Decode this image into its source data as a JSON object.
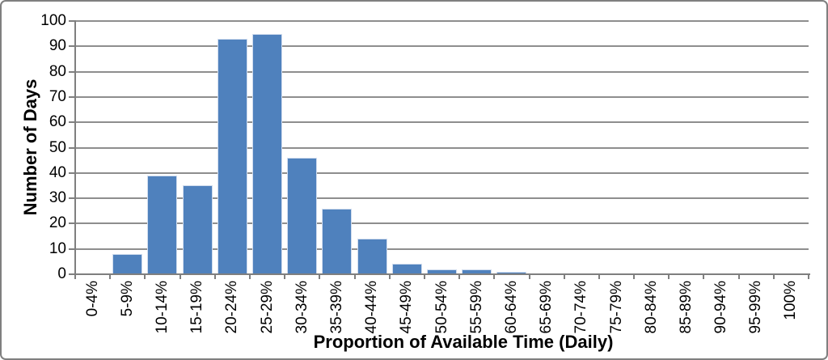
{
  "chart_data": {
    "type": "bar",
    "title": "",
    "categories": [
      "0-4%",
      "5-9%",
      "10-14%",
      "15-19%",
      "20-24%",
      "25-29%",
      "30-34%",
      "35-39%",
      "40-44%",
      "45-49%",
      "50-54%",
      "55-59%",
      "60-64%",
      "65-69%",
      "70-74%",
      "75-79%",
      "80-84%",
      "85-89%",
      "90-94%",
      "95-99%",
      "100%"
    ],
    "values": [
      0,
      8,
      39,
      35,
      93,
      95,
      46,
      26,
      14,
      4,
      2,
      2,
      1,
      0,
      0,
      0,
      0,
      0,
      0,
      0,
      0
    ],
    "xlabel": "Proportion of Available Time (Daily)",
    "ylabel": "Number of Days",
    "ylim": [
      0,
      100
    ],
    "ytick_step": 10,
    "grid": "horizontal-only",
    "legend_position": "none",
    "colors": {
      "bar_fill": "#4f81bd",
      "bar_border": "#d0dcee",
      "gridline": "#8e8e8e",
      "axis_line": "#7f7f7f",
      "tick_mark": "#7f7f7f",
      "text": "#000000",
      "frame_border": "#7f7f7f",
      "background": "#ffffff"
    }
  }
}
